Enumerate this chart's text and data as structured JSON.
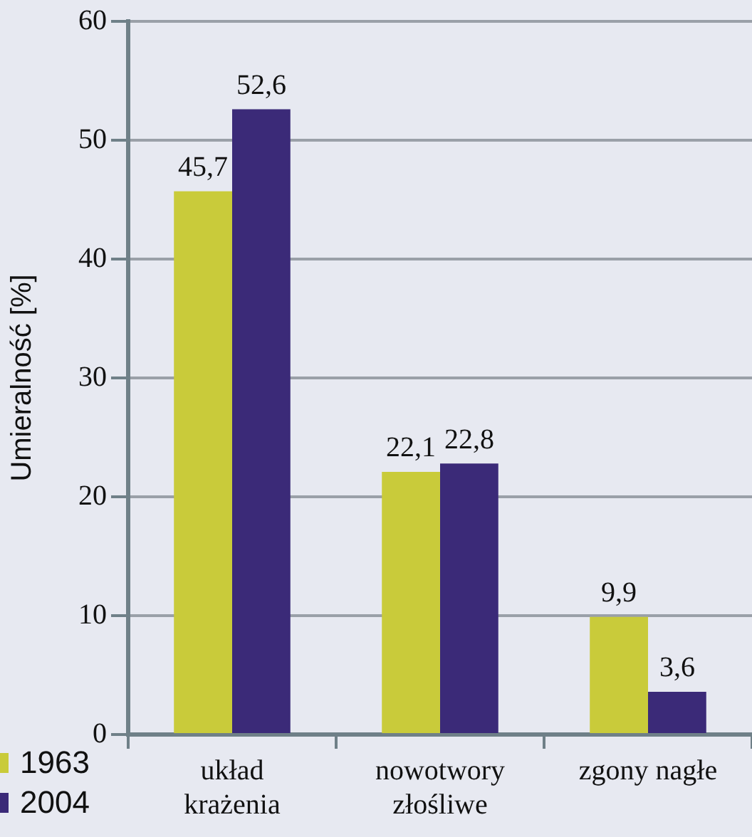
{
  "chart_data": {
    "type": "bar",
    "ylabel": "Umieralność [%]",
    "categories": [
      "układ\nkrażenia",
      "nowotwory\nzłośliwe",
      "zgony nagłe"
    ],
    "series": [
      {
        "name": "1963",
        "color": "#c9cb3a",
        "values": [
          45.7,
          22.1,
          9.9
        ],
        "value_labels": [
          "45,7",
          "22,1",
          "9,9"
        ]
      },
      {
        "name": "2004",
        "color": "#3b2a78",
        "values": [
          52.6,
          22.8,
          3.6
        ],
        "value_labels": [
          "52,6",
          "22,8",
          "3,6"
        ]
      }
    ],
    "ylim": [
      0,
      60
    ],
    "yticks": [
      0,
      10,
      20,
      30,
      40,
      50,
      60
    ],
    "grid": "y",
    "legend": "bottom left"
  }
}
